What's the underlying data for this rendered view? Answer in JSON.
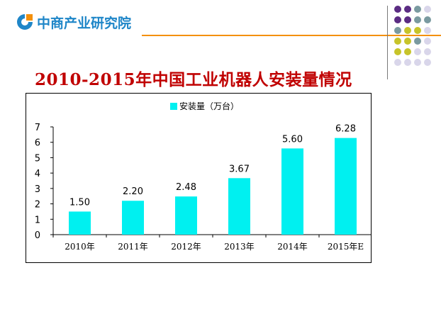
{
  "brand": {
    "name": "中商产业研究院",
    "accent_color": "#f4900c",
    "logo_color": "#1f86c8"
  },
  "slide": {
    "title": "2010-2015年中国工业机器人安装量情况"
  },
  "decor": {
    "dot_colors": [
      "#5b2c83",
      "#7a9aa0",
      "#c7c42a",
      "#d9d6ea"
    ]
  },
  "chart_data": {
    "type": "bar",
    "categories": [
      "2010年",
      "2011年",
      "2012年",
      "2013年",
      "2014年",
      "2015年E"
    ],
    "series": [
      {
        "name": "安装量（万台）",
        "values": [
          1.5,
          2.2,
          2.48,
          3.67,
          5.6,
          6.28
        ],
        "labels": [
          "1.50",
          "2.20",
          "2.48",
          "3.67",
          "5.60",
          "6.28"
        ],
        "color": "#00f0f0"
      }
    ],
    "title": "",
    "xlabel": "",
    "ylabel": "",
    "ylim": [
      0,
      7
    ],
    "yticks": [
      0,
      1,
      2,
      3,
      4,
      5,
      6,
      7
    ],
    "legend": "top-center",
    "grid": false
  }
}
